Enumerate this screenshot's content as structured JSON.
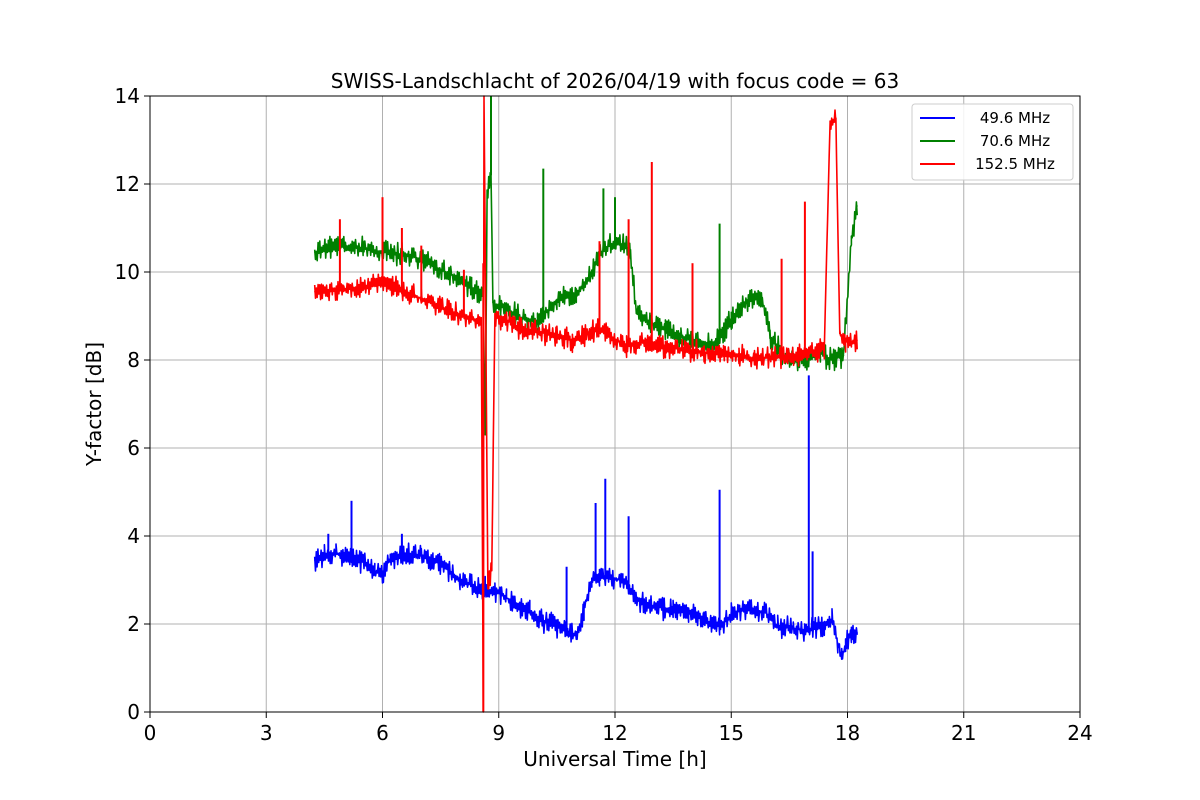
{
  "chart_data": {
    "type": "line",
    "title": "SWISS-Landschlacht of 2026/04/19 with focus code = 63",
    "xlabel": "Universal Time [h]",
    "ylabel": "Y-factor [dB]",
    "xlim": [
      0,
      24
    ],
    "ylim": [
      0,
      14
    ],
    "xticks": [
      0,
      3,
      6,
      9,
      12,
      15,
      18,
      21,
      24
    ],
    "yticks": [
      0,
      2,
      4,
      6,
      8,
      10,
      12,
      14
    ],
    "grid": true,
    "legend_position": "top-right",
    "series": [
      {
        "name": "49.6 MHz",
        "color": "#0000ff",
        "points": [
          [
            4.25,
            3.45
          ],
          [
            4.5,
            3.55
          ],
          [
            4.8,
            3.6
          ],
          [
            5.0,
            3.5
          ],
          [
            5.2,
            3.55
          ],
          [
            5.5,
            3.4
          ],
          [
            5.8,
            3.2
          ],
          [
            6.0,
            3.15
          ],
          [
            6.2,
            3.5
          ],
          [
            6.5,
            3.6
          ],
          [
            7.0,
            3.55
          ],
          [
            7.3,
            3.45
          ],
          [
            7.6,
            3.3
          ],
          [
            8.0,
            3.0
          ],
          [
            8.3,
            2.9
          ],
          [
            8.6,
            2.75
          ],
          [
            8.65,
            2.8
          ],
          [
            8.9,
            2.75
          ],
          [
            9.2,
            2.6
          ],
          [
            9.5,
            2.4
          ],
          [
            9.8,
            2.25
          ],
          [
            10.1,
            2.1
          ],
          [
            10.4,
            2.0
          ],
          [
            10.8,
            1.8
          ],
          [
            11.0,
            1.75
          ],
          [
            11.2,
            2.3
          ],
          [
            11.4,
            3.0
          ],
          [
            11.6,
            3.1
          ],
          [
            11.9,
            3.05
          ],
          [
            12.2,
            3.0
          ],
          [
            12.5,
            2.6
          ],
          [
            12.8,
            2.4
          ],
          [
            13.1,
            2.4
          ],
          [
            13.5,
            2.3
          ],
          [
            13.9,
            2.25
          ],
          [
            14.3,
            2.1
          ],
          [
            14.7,
            1.95
          ],
          [
            15.0,
            2.2
          ],
          [
            15.3,
            2.35
          ],
          [
            15.6,
            2.3
          ],
          [
            15.9,
            2.25
          ],
          [
            16.2,
            1.95
          ],
          [
            16.6,
            1.9
          ],
          [
            17.0,
            1.85
          ],
          [
            17.4,
            1.95
          ],
          [
            17.6,
            2.1
          ],
          [
            17.75,
            1.55
          ],
          [
            17.85,
            1.25
          ],
          [
            17.95,
            1.55
          ],
          [
            18.1,
            1.75
          ],
          [
            18.25,
            1.8
          ]
        ],
        "spikes": [
          [
            4.6,
            4.05
          ],
          [
            5.2,
            4.8
          ],
          [
            6.5,
            4.05
          ],
          [
            10.75,
            3.3
          ],
          [
            11.5,
            4.75
          ],
          [
            11.75,
            5.3
          ],
          [
            12.35,
            4.45
          ],
          [
            14.7,
            5.05
          ],
          [
            17.0,
            7.65
          ],
          [
            17.1,
            3.65
          ]
        ]
      },
      {
        "name": "70.6 MHz",
        "color": "#008000",
        "points": [
          [
            4.25,
            10.45
          ],
          [
            4.6,
            10.55
          ],
          [
            5.0,
            10.6
          ],
          [
            5.5,
            10.55
          ],
          [
            6.0,
            10.45
          ],
          [
            6.5,
            10.4
          ],
          [
            7.0,
            10.3
          ],
          [
            7.5,
            10.05
          ],
          [
            8.0,
            9.85
          ],
          [
            8.3,
            9.65
          ],
          [
            8.6,
            9.45
          ],
          [
            8.65,
            6.3
          ],
          [
            8.7,
            11.8
          ],
          [
            8.8,
            12.2
          ],
          [
            8.85,
            9.3
          ],
          [
            9.2,
            9.15
          ],
          [
            9.6,
            8.95
          ],
          [
            10.0,
            8.9
          ],
          [
            10.5,
            9.35
          ],
          [
            11.0,
            9.5
          ],
          [
            11.4,
            10.0
          ],
          [
            11.7,
            10.5
          ],
          [
            12.0,
            10.7
          ],
          [
            12.4,
            10.5
          ],
          [
            12.55,
            9.1
          ],
          [
            12.9,
            8.85
          ],
          [
            13.3,
            8.7
          ],
          [
            13.7,
            8.55
          ],
          [
            14.2,
            8.4
          ],
          [
            14.6,
            8.35
          ],
          [
            15.0,
            8.95
          ],
          [
            15.4,
            9.35
          ],
          [
            15.8,
            9.4
          ],
          [
            16.0,
            8.55
          ],
          [
            16.4,
            8.05
          ],
          [
            16.8,
            8.0
          ],
          [
            17.3,
            8.15
          ],
          [
            17.6,
            8.0
          ],
          [
            17.9,
            8.1
          ],
          [
            18.1,
            10.8
          ],
          [
            18.25,
            11.5
          ]
        ],
        "spikes": [
          [
            10.15,
            12.35
          ],
          [
            11.7,
            11.9
          ],
          [
            12.0,
            11.7
          ],
          [
            14.7,
            11.1
          ],
          [
            8.8,
            14.0
          ]
        ]
      },
      {
        "name": "152.5 MHz",
        "color": "#ff0000",
        "points": [
          [
            4.25,
            9.55
          ],
          [
            4.6,
            9.55
          ],
          [
            5.0,
            9.6
          ],
          [
            5.5,
            9.65
          ],
          [
            6.0,
            9.75
          ],
          [
            6.5,
            9.6
          ],
          [
            7.0,
            9.4
          ],
          [
            7.5,
            9.2
          ],
          [
            8.0,
            9.0
          ],
          [
            8.3,
            8.95
          ],
          [
            8.55,
            8.85
          ],
          [
            8.6,
            0.0
          ],
          [
            8.62,
            14.0
          ],
          [
            8.72,
            2.8
          ],
          [
            8.82,
            3.3
          ],
          [
            8.9,
            9.0
          ],
          [
            9.2,
            8.9
          ],
          [
            9.6,
            8.7
          ],
          [
            10.0,
            8.65
          ],
          [
            10.5,
            8.55
          ],
          [
            10.9,
            8.45
          ],
          [
            11.3,
            8.6
          ],
          [
            11.6,
            8.75
          ],
          [
            11.9,
            8.5
          ],
          [
            12.3,
            8.35
          ],
          [
            12.8,
            8.4
          ],
          [
            13.3,
            8.3
          ],
          [
            13.8,
            8.25
          ],
          [
            14.3,
            8.15
          ],
          [
            14.8,
            8.15
          ],
          [
            15.2,
            8.1
          ],
          [
            15.6,
            8.05
          ],
          [
            16.0,
            8.05
          ],
          [
            16.5,
            8.1
          ],
          [
            17.0,
            8.15
          ],
          [
            17.4,
            8.25
          ],
          [
            17.55,
            13.4
          ],
          [
            17.7,
            13.5
          ],
          [
            17.8,
            8.6
          ],
          [
            17.95,
            8.45
          ],
          [
            18.1,
            8.4
          ],
          [
            18.25,
            8.45
          ]
        ],
        "spikes": [
          [
            4.9,
            11.2
          ],
          [
            6.0,
            11.7
          ],
          [
            6.5,
            11.0
          ],
          [
            7.0,
            10.6
          ],
          [
            8.1,
            10.05
          ],
          [
            8.6,
            10.2
          ],
          [
            11.6,
            10.7
          ],
          [
            12.35,
            11.2
          ],
          [
            12.95,
            12.5
          ],
          [
            14.0,
            10.2
          ],
          [
            16.3,
            10.3
          ],
          [
            16.9,
            11.6
          ]
        ]
      }
    ]
  }
}
